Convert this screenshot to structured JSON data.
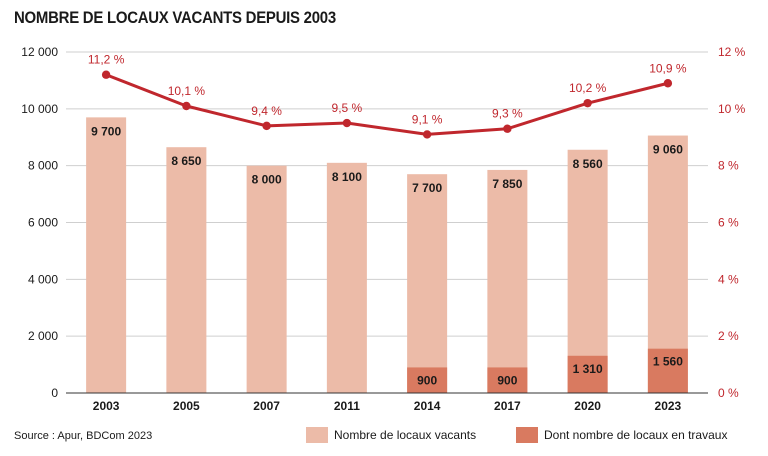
{
  "title": "NOMBRE DE LOCAUX VACANTS DEPUIS 2003",
  "source": "Source : Apur, BDCom 2023",
  "colors": {
    "vacants": "#ecbba8",
    "travaux": "#d97a60",
    "line": "#c0272d",
    "grid": "#cfcfcf"
  },
  "legend": {
    "vacants": "Nombre de locaux vacants",
    "travaux": "Dont nombre de locaux en travaux"
  },
  "chart_data": {
    "type": "bar",
    "title": "NOMBRE DE LOCAUX VACANTS DEPUIS 2003",
    "categories": [
      "2003",
      "2005",
      "2007",
      "2011",
      "2014",
      "2017",
      "2020",
      "2023"
    ],
    "series": [
      {
        "name": "Nombre de locaux vacants",
        "type": "bar",
        "axis": "left",
        "values": [
          9700,
          8650,
          8000,
          8100,
          7700,
          7850,
          8560,
          9060
        ],
        "labels": [
          "9 700",
          "8 650",
          "8 000",
          "8 100",
          "7 700",
          "7 850",
          "8 560",
          "9 060"
        ]
      },
      {
        "name": "Dont nombre de locaux en travaux",
        "type": "bar",
        "axis": "left",
        "values": [
          null,
          null,
          null,
          null,
          900,
          900,
          1310,
          1560
        ],
        "labels": [
          "",
          "",
          "",
          "",
          "900",
          "900",
          "1 310",
          "1 560"
        ]
      },
      {
        "type": "line",
        "axis": "right",
        "values": [
          11.2,
          10.1,
          9.4,
          9.5,
          9.1,
          9.3,
          10.2,
          10.9
        ],
        "labels": [
          "11,2 %",
          "10,1 %",
          "9,4 %",
          "9,5 %",
          "9,1 %",
          "9,3 %",
          "10,2 %",
          "10,9 %"
        ]
      }
    ],
    "y_left": {
      "ylim": [
        0,
        12000
      ],
      "ticks": [
        "0",
        "2 000",
        "4 000",
        "6 000",
        "8 000",
        "10 000",
        "12 000"
      ]
    },
    "y_right": {
      "ylim": [
        0,
        12
      ],
      "ticks": [
        "0 %",
        "2 %",
        "4 %",
        "6 %",
        "8 %",
        "10 %",
        "12 %"
      ]
    },
    "grid": true,
    "legend_position": "bottom-right"
  }
}
